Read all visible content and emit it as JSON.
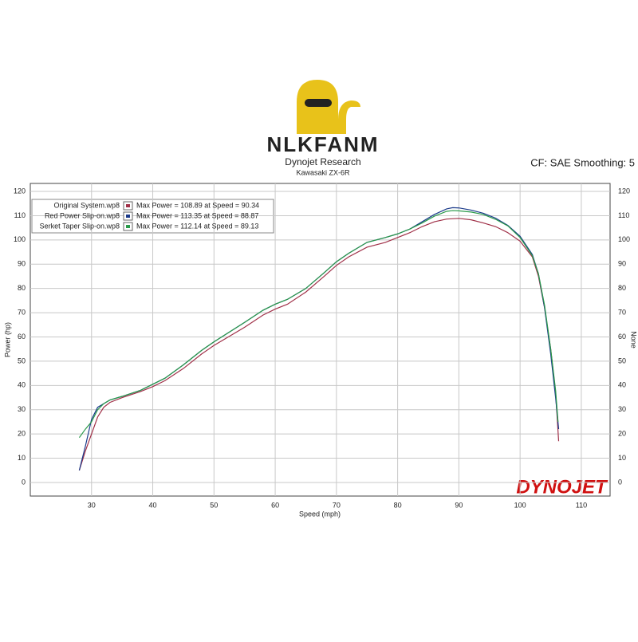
{
  "header": {
    "logo": "NLKFANM",
    "company": "Dynojet Research",
    "vehicle": "Kawasaki ZX-6R",
    "settings": "CF: SAE Smoothing: 5",
    "brand": "DYNOJET"
  },
  "chart_data": {
    "type": "line",
    "xlabel": "Speed (mph)",
    "ylabel": "Power (hp)",
    "y2label": "None",
    "xlim": [
      20,
      114.7
    ],
    "ylim": [
      -5.6,
      123.3
    ],
    "xticks": [
      30,
      40,
      50,
      60,
      70,
      80,
      90,
      100,
      110
    ],
    "yticks": [
      0,
      10,
      20,
      30,
      40,
      50,
      60,
      70,
      80,
      90,
      100,
      110,
      120
    ],
    "grid": true,
    "series": [
      {
        "name": "Original System.wp8",
        "max_label": "Max Power = 108.89 at Speed = 90.34",
        "color": "#a03048",
        "x": [
          28,
          29,
          30,
          31,
          32,
          33,
          35,
          38,
          40,
          42,
          45,
          48,
          50,
          55,
          58,
          60,
          62,
          65,
          68,
          70,
          72,
          75,
          78,
          80,
          82,
          84,
          86,
          88,
          90,
          92,
          94,
          96,
          98,
          100,
          102,
          103,
          104,
          105,
          105.8,
          106.3
        ],
        "values": [
          5,
          13,
          20,
          27,
          31,
          33,
          35,
          37.5,
          39.5,
          42,
          47,
          53,
          56.5,
          64,
          69,
          71.5,
          73.5,
          78.5,
          85,
          89.5,
          93,
          97,
          99,
          101,
          103,
          105.5,
          107.5,
          108.6,
          108.9,
          108.3,
          107,
          105.5,
          103,
          99.5,
          93,
          85,
          72,
          55,
          37,
          17
        ]
      },
      {
        "name": "Red Power Slip-on.wp8",
        "max_label": "Max Power = 113.35 at Speed = 88.87",
        "color": "#1a3a8a",
        "x": [
          28,
          29,
          30,
          31,
          32,
          33,
          35,
          38,
          40,
          42,
          45,
          48,
          50,
          55,
          58,
          60,
          62,
          65,
          68,
          70,
          72,
          75,
          78,
          80,
          82,
          84,
          86,
          88,
          89,
          90,
          92,
          94,
          96,
          98,
          100,
          102,
          103,
          104,
          105,
          105.8,
          106.3
        ],
        "values": [
          5,
          15,
          26,
          31,
          32.5,
          34,
          35.5,
          38,
          40.5,
          43,
          48.5,
          54.5,
          58,
          66,
          71,
          73.5,
          75.5,
          80,
          86.5,
          91,
          94.5,
          99,
          101,
          102.5,
          104.5,
          107.5,
          110.5,
          112.8,
          113.3,
          113.2,
          112.3,
          111,
          109,
          106,
          101.5,
          94,
          86,
          72,
          53,
          35,
          22
        ]
      },
      {
        "name": "Serket Taper Slip-on.wp8",
        "max_label": "Max Power = 112.14 at Speed = 89.13",
        "color": "#2a9a4a",
        "x": [
          28,
          29,
          30,
          31,
          32,
          33,
          35,
          38,
          40,
          42,
          45,
          48,
          50,
          55,
          58,
          60,
          62,
          65,
          68,
          70,
          72,
          75,
          78,
          80,
          82,
          84,
          86,
          88,
          89,
          90,
          92,
          94,
          96,
          98,
          100,
          102,
          103,
          104,
          105,
          105.8,
          106.2
        ],
        "values": [
          18.5,
          22,
          25,
          30,
          32.5,
          34,
          35.5,
          38,
          40.5,
          43,
          48.5,
          54.5,
          58,
          66,
          71,
          73.5,
          75.5,
          80,
          86.5,
          91,
          94.5,
          99,
          101,
          102.5,
          104.5,
          107,
          109.8,
          111.8,
          112.1,
          112,
          111.5,
          110.5,
          108.5,
          105.8,
          101,
          93.5,
          86,
          73,
          55,
          38,
          25
        ]
      }
    ]
  }
}
